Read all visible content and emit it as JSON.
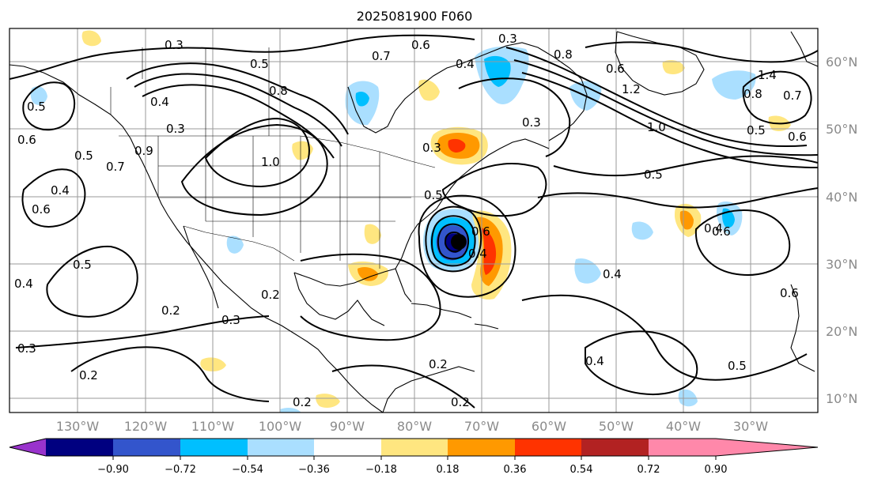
{
  "title": "2025081900 F060",
  "lat_labels": [
    "60°N",
    "50°N",
    "40°N",
    "30°N",
    "20°N",
    "10°N"
  ],
  "lon_labels": [
    "130°W",
    "120°W",
    "110°W",
    "100°W",
    "90°W",
    "80°W",
    "70°W",
    "60°W",
    "50°W",
    "40°W",
    "30°W"
  ],
  "colorbar": {
    "ticks": [
      "−0.90",
      "−0.72",
      "−0.54",
      "−0.36",
      "−0.18",
      "0.18",
      "0.36",
      "0.54",
      "0.72",
      "0.90"
    ],
    "colors": [
      "#9933cc",
      "#000080",
      "#3355cc",
      "#00bfff",
      "#aadfff",
      "#ffffff",
      "#ffe680",
      "#ff9900",
      "#ff3300",
      "#b22222",
      "#ff88aa"
    ]
  },
  "contour_labels": [
    {
      "text": "0.3"
    },
    {
      "text": "0.5"
    },
    {
      "text": "0.7"
    },
    {
      "text": "0.6"
    },
    {
      "text": "0.4"
    },
    {
      "text": "0.3"
    },
    {
      "text": "0.8"
    },
    {
      "text": "0.6"
    },
    {
      "text": "1.2"
    },
    {
      "text": "1.4"
    },
    {
      "text": "0.8"
    },
    {
      "text": "0.7"
    },
    {
      "text": "0.4"
    },
    {
      "text": "0.3"
    },
    {
      "text": "0.5"
    },
    {
      "text": "0.5"
    },
    {
      "text": "0.6"
    },
    {
      "text": "0.6"
    },
    {
      "text": "0.8"
    },
    {
      "text": "0.3"
    },
    {
      "text": "1.0"
    },
    {
      "text": "0.9"
    },
    {
      "text": "0.5"
    },
    {
      "text": "0.7"
    },
    {
      "text": "0.4"
    },
    {
      "text": "0.6"
    },
    {
      "text": "0.4"
    },
    {
      "text": "0.3"
    },
    {
      "text": "0.5"
    },
    {
      "text": "1.0"
    },
    {
      "text": "0.5"
    },
    {
      "text": "0.5"
    },
    {
      "text": "0.6"
    },
    {
      "text": "0.4"
    },
    {
      "text": "0.4"
    },
    {
      "text": "0.2"
    },
    {
      "text": "0.3"
    },
    {
      "text": "0.2"
    },
    {
      "text": "0.4"
    },
    {
      "text": "0.2"
    },
    {
      "text": "0.3"
    },
    {
      "text": "0.2"
    },
    {
      "text": "0.2"
    },
    {
      "text": "0.2"
    },
    {
      "text": "0.4"
    },
    {
      "text": "0.5"
    },
    {
      "text": "0.6"
    },
    {
      "text": "0.6"
    }
  ]
}
